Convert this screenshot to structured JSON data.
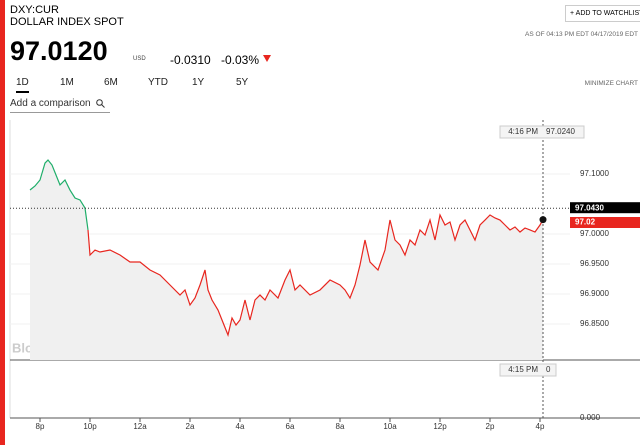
{
  "header": {
    "symbol": "DXY:CUR",
    "name": "DOLLAR INDEX SPOT",
    "price": "97.0120",
    "currency": "USD",
    "change": "-0.0310",
    "change_pct": "-0.03%",
    "timestamp": "AS OF 04:13 PM EDT 04/17/2019 EDT",
    "watchlist_button": "+ ADD TO WATCHLIST"
  },
  "tabs": [
    "1D",
    "1M",
    "6M",
    "YTD",
    "1Y",
    "5Y"
  ],
  "active_tab": 0,
  "minimize": "MINIMIZE CHART",
  "comparison_placeholder": "Add a comparison",
  "watermark": "BloombergMarkets",
  "chart_data": {
    "type": "line",
    "up_color": "#1fae6a",
    "down_color": "#e8261f",
    "reference": {
      "value": 97.043,
      "label": "97.0430"
    },
    "last": {
      "value": 97.02,
      "label": "97.02"
    },
    "crosshair": {
      "time": "4:16 PM",
      "value_label": "97.0240",
      "volume_time": "4:15 PM",
      "volume_value": 0
    },
    "volume_tick": "0.000",
    "x": [
      19.6,
      19.8,
      20,
      20.2,
      20.32,
      20.48,
      20.64,
      20.8,
      21,
      21.2,
      21.4,
      21.6,
      21.8,
      21.92,
      22,
      22.2,
      22.4,
      22.8,
      23.2,
      23.6,
      24,
      24.4,
      24.8,
      25.2,
      25.6,
      25.8,
      26,
      26.2,
      26.4,
      26.6,
      26.72,
      26.88,
      27.12,
      27.28,
      27.52,
      27.68,
      27.84,
      28,
      28.2,
      28.4,
      28.6,
      28.8,
      29,
      29.2,
      29.52,
      29.8,
      30,
      30.2,
      30.4,
      30.8,
      31.2,
      31.6,
      32,
      32.2,
      32.4,
      32.6,
      32.8,
      33,
      33.2,
      33.52,
      33.8,
      34,
      34.2,
      34.4,
      34.6,
      34.8,
      35,
      35.2,
      35.4,
      35.6,
      35.8,
      36,
      36.2,
      36.4,
      36.6,
      36.8,
      37,
      37.2,
      37.4,
      37.6,
      37.8,
      38,
      38.2,
      38.4,
      38.6,
      38.8,
      39,
      39.2,
      39.4,
      39.6,
      39.8,
      40,
      40.12
    ],
    "values": [
      97.0733,
      97.08,
      97.09,
      97.1183,
      97.1233,
      97.115,
      97.0983,
      97.0817,
      97.09,
      97.0733,
      97.06,
      97.0567,
      97.0433,
      97.0067,
      96.965,
      96.9733,
      96.97,
      96.9733,
      96.965,
      96.9533,
      96.9533,
      96.94,
      96.9317,
      96.915,
      96.8983,
      96.9067,
      96.8817,
      96.8933,
      96.915,
      96.94,
      96.9067,
      96.89,
      96.8733,
      96.8567,
      96.8317,
      96.86,
      96.8483,
      96.8567,
      96.89,
      96.8567,
      96.89,
      96.8983,
      96.89,
      96.9067,
      96.8933,
      96.9233,
      96.94,
      96.9067,
      96.915,
      96.8983,
      96.9067,
      96.9233,
      96.915,
      96.9067,
      96.8933,
      96.915,
      96.9483,
      96.99,
      96.9533,
      96.94,
      96.9733,
      97.0233,
      96.99,
      96.9817,
      96.965,
      96.99,
      96.9817,
      97.0067,
      96.9983,
      97.0233,
      96.99,
      97.0317,
      97.015,
      97.02,
      96.99,
      97.015,
      97.0233,
      97.0067,
      96.99,
      97.015,
      97.0233,
      97.0317,
      97.0267,
      97.0233,
      97.015,
      97.0067,
      97.0117,
      97.0033,
      97.01,
      97.0067,
      97.0033,
      97.015,
      97.024
    ],
    "xlim": [
      18.8,
      41.2
    ],
    "ylim": [
      96.79,
      97.19
    ],
    "xticks": [
      {
        "value": 20,
        "label": "8p"
      },
      {
        "value": 22,
        "label": "10p"
      },
      {
        "value": 24,
        "label": "12a"
      },
      {
        "value": 26,
        "label": "2a"
      },
      {
        "value": 28,
        "label": "4a"
      },
      {
        "value": 30,
        "label": "6a"
      },
      {
        "value": 32,
        "label": "8a"
      },
      {
        "value": 34,
        "label": "10a"
      },
      {
        "value": 36,
        "label": "12p"
      },
      {
        "value": 38,
        "label": "2p"
      },
      {
        "value": 40,
        "label": "4p"
      }
    ],
    "yticks": [
      {
        "value": 96.85,
        "label": "96.8500"
      },
      {
        "value": 96.9,
        "label": "96.9000"
      },
      {
        "value": 96.95,
        "label": "96.9500"
      },
      {
        "value": 97,
        "label": "97.0000"
      },
      {
        "value": 97.1,
        "label": "97.1000"
      }
    ]
  }
}
